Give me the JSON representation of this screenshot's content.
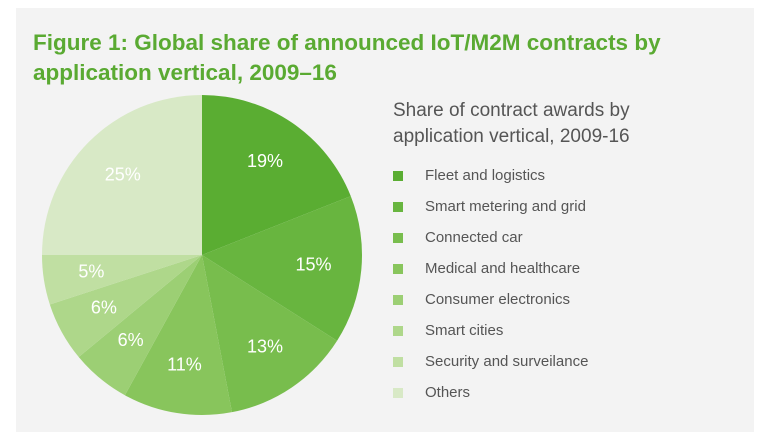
{
  "chart_data": {
    "type": "pie",
    "title": "Figure 1: Global share of announced IoT/M2M contracts by application vertical, 2009–16",
    "legend_title": "Share of contract awards by application vertical, 2009-16",
    "categories": [
      "Fleet and logistics",
      "Smart metering and grid",
      "Connected car",
      "Medical and healthcare",
      "Consumer electronics",
      "Smart cities",
      "Security and surveilance",
      "Others"
    ],
    "values": [
      19,
      15,
      13,
      11,
      6,
      6,
      5,
      25
    ],
    "value_labels": [
      "19%",
      "15%",
      "13%",
      "11%",
      "6%",
      "6%",
      "5%",
      "25%"
    ],
    "colors": [
      "#5aad32",
      "#68b53f",
      "#78bd4d",
      "#88c55c",
      "#9ccf74",
      "#aed78a",
      "#c0dfa2",
      "#d8e9c6"
    ],
    "legend_position": "right"
  }
}
